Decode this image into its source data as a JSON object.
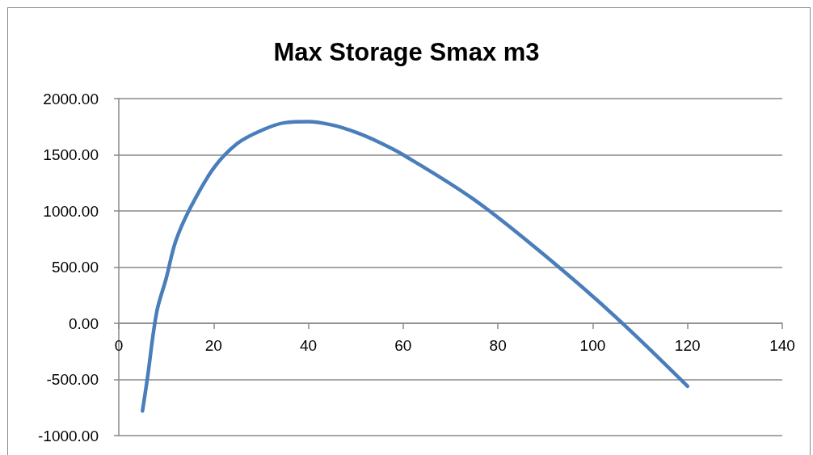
{
  "chart_data": {
    "type": "line",
    "title": "Max Storage Smax m3",
    "x": [
      5,
      6,
      8,
      10,
      12,
      15,
      20,
      25,
      30,
      35,
      40,
      45,
      50,
      55,
      60,
      75,
      90,
      105,
      120
    ],
    "series": [
      {
        "color": "#4a7ebb",
        "values": [
          -780,
          -500,
          100,
          400,
          730,
          1020,
          1380,
          1600,
          1715,
          1785,
          1795,
          1765,
          1700,
          1610,
          1500,
          1100,
          600,
          50,
          -560
        ]
      }
    ],
    "xlim": [
      0,
      140
    ],
    "xticks": [
      0,
      20,
      40,
      60,
      80,
      100,
      120,
      140
    ],
    "ylim": [
      -1000,
      2000
    ],
    "yticks": [
      {
        "value": -1000,
        "label": "-1000.00"
      },
      {
        "value": -500,
        "label": "-500.00"
      },
      {
        "value": 0,
        "label": "0.00"
      },
      {
        "value": 500,
        "label": "500.00"
      },
      {
        "value": 1000,
        "label": "1000.00"
      },
      {
        "value": 1500,
        "label": "1500.00"
      },
      {
        "value": 2000,
        "label": "2000.00"
      }
    ],
    "grid": "y",
    "marker": "none",
    "line_style": "solid"
  }
}
